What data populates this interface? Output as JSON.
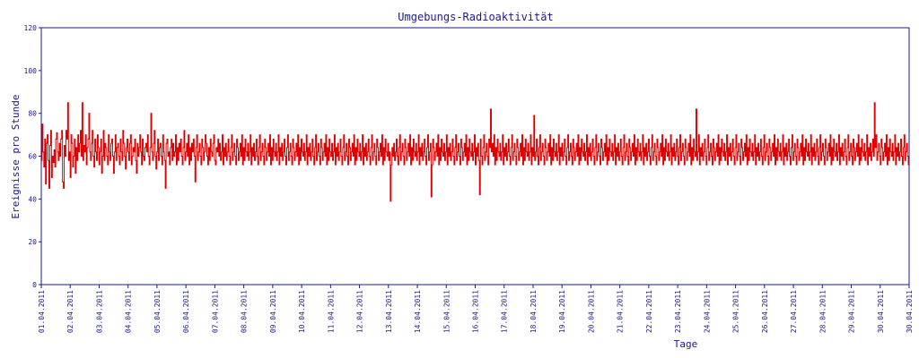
{
  "colors": {
    "axis": "#1a1a8c",
    "series": "#e00000",
    "background": "#ffffff"
  },
  "chart_data": {
    "type": "line",
    "title": "Umgebungs-Radioaktivität",
    "xlabel": "Tage",
    "ylabel": "Ereignisse pro Stunde",
    "ylim": [
      0,
      120
    ],
    "yticks": [
      0,
      20,
      40,
      60,
      80,
      100,
      120
    ],
    "xlim": [
      "2011-04-01 00:00",
      "2011-04-30 24:00"
    ],
    "x_tick_labels": [
      "01.04.2011",
      "02.04.2011",
      "03.04.2011",
      "04.04.2011",
      "05.04.2011",
      "06.04.2011",
      "07.04.2011",
      "08.04.2011",
      "09.04.2011",
      "10.04.2011",
      "11.04.2011",
      "12.04.2011",
      "13.04.2011",
      "14.04.2011",
      "15.04.2011",
      "16.04.2011",
      "17.04.2011",
      "18.04.2011",
      "19.04.2011",
      "20.04.2011",
      "21.04.2011",
      "22.04.2011",
      "23.04.2011",
      "24.04.2011",
      "25.04.2011",
      "26.04.2011",
      "27.04.2011",
      "28.04.2011",
      "29.04.2011",
      "30.04.2011",
      "30.04.2011"
    ],
    "grid": false,
    "series": [
      {
        "values": [
          58,
          75,
          62,
          55,
          68,
          47,
          66,
          70,
          58,
          45,
          65,
          72,
          50,
          60,
          57,
          63,
          55,
          68,
          71,
          62,
          58,
          66,
          60,
          68,
          72,
          48,
          45,
          65,
          60,
          72,
          68,
          85,
          58,
          62,
          50,
          70,
          66,
          55,
          60,
          68,
          52,
          64,
          58,
          70,
          62,
          66,
          72,
          60,
          85,
          58,
          65,
          62,
          70,
          56,
          64,
          68,
          80,
          62,
          58,
          66,
          72,
          60,
          55,
          68,
          62,
          58,
          70,
          64,
          56,
          62,
          68,
          52,
          60,
          72,
          58,
          66,
          64,
          60,
          56,
          70,
          62,
          58,
          66,
          68,
          60,
          52,
          62,
          70,
          58,
          64,
          66,
          60,
          56,
          68,
          62,
          58,
          72,
          66,
          60,
          54,
          64,
          68,
          62,
          58,
          66,
          70,
          56,
          60,
          64,
          62,
          68,
          58,
          52,
          66,
          60,
          64,
          70,
          62,
          56,
          68,
          60,
          58,
          64,
          66,
          62,
          70,
          60,
          56,
          64,
          80,
          62,
          58,
          66,
          72,
          60,
          54,
          62,
          68,
          58,
          64,
          66,
          60,
          56,
          70,
          62,
          58,
          45,
          66,
          68,
          60,
          62,
          56,
          64,
          68,
          58,
          66,
          60,
          62,
          70,
          56,
          64,
          58,
          66,
          62,
          68,
          60,
          56,
          64,
          72,
          58,
          62,
          66,
          60,
          70,
          56,
          64,
          58,
          66,
          62,
          68,
          60,
          48,
          64,
          70,
          58,
          62,
          66,
          60,
          56,
          68,
          64,
          58,
          62,
          70,
          66,
          60,
          56,
          64,
          58,
          68,
          62,
          60,
          66,
          70,
          58,
          56,
          64,
          62,
          68,
          60,
          66,
          58,
          62,
          70,
          56,
          64,
          60,
          66,
          58,
          62,
          68,
          60,
          56,
          64,
          70,
          58,
          62,
          66,
          60,
          56,
          68,
          64,
          58,
          62,
          66,
          60,
          70,
          56,
          64,
          58,
          68,
          62,
          60,
          66,
          58,
          62,
          70,
          56,
          64,
          60,
          66,
          58,
          62,
          68,
          60,
          56,
          64,
          70,
          58,
          62,
          66,
          60,
          56,
          68,
          64,
          58,
          62,
          66,
          60,
          70,
          56,
          64,
          58,
          68,
          62,
          60,
          66,
          58,
          62,
          70,
          56,
          64,
          60,
          66,
          58,
          62,
          68,
          60,
          56,
          64,
          70,
          58,
          62,
          66,
          60,
          56,
          68,
          64,
          58,
          62,
          66,
          60,
          70,
          56,
          64,
          58,
          68,
          62,
          60,
          66,
          58,
          62,
          70,
          56,
          64,
          60,
          66,
          58,
          62,
          68,
          60,
          56,
          64,
          70,
          58,
          62,
          66,
          60,
          56,
          68,
          64,
          58,
          62,
          66,
          60,
          70,
          56,
          64,
          58,
          68,
          62,
          60,
          66,
          58,
          62,
          70,
          56,
          64,
          60,
          66,
          58,
          62,
          68,
          60,
          56,
          64,
          70,
          58,
          62,
          66,
          60,
          56,
          68,
          64,
          58,
          62,
          66,
          60,
          70,
          56,
          64,
          58,
          68,
          62,
          60,
          66,
          58,
          62,
          70,
          56,
          64,
          60,
          66,
          58,
          62,
          68,
          60,
          56,
          64,
          70,
          58,
          62,
          66,
          60,
          56,
          68,
          64,
          58,
          62,
          66,
          60,
          70,
          56,
          64,
          58,
          68,
          62,
          60,
          66,
          58,
          62,
          39,
          56,
          64,
          60,
          66,
          58,
          62,
          68,
          60,
          56,
          64,
          70,
          58,
          62,
          66,
          60,
          56,
          68,
          64,
          58,
          62,
          66,
          60,
          70,
          56,
          64,
          58,
          68,
          62,
          60,
          66,
          58,
          62,
          70,
          56,
          64,
          60,
          66,
          58,
          62,
          68,
          60,
          56,
          64,
          70,
          58,
          62,
          66,
          41,
          56,
          68,
          64,
          58,
          62,
          66,
          60,
          70,
          56,
          64,
          58,
          68,
          62,
          60,
          66,
          58,
          62,
          70,
          56,
          64,
          60,
          66,
          58,
          62,
          68,
          60,
          56,
          64,
          70,
          58,
          62,
          66,
          60,
          56,
          68,
          64,
          58,
          62,
          66,
          60,
          70,
          56,
          64,
          58,
          68,
          62,
          60,
          66,
          58,
          62,
          70,
          56,
          64,
          60,
          66,
          58,
          42,
          68,
          60,
          56,
          64,
          70,
          58,
          62,
          66,
          60,
          56,
          68,
          64,
          82,
          62,
          66,
          60,
          70,
          56,
          64,
          58,
          68,
          62,
          60,
          66,
          58,
          62,
          70,
          56,
          64,
          60,
          66,
          58,
          62,
          68,
          60,
          56,
          64,
          70,
          58,
          62,
          66,
          60,
          56,
          68,
          64,
          58,
          62,
          66,
          60,
          70,
          56,
          64,
          58,
          68,
          62,
          60,
          66,
          58,
          62,
          70,
          56,
          64,
          60,
          79,
          58,
          62,
          68,
          60,
          56,
          64,
          70,
          58,
          62,
          66,
          60,
          56,
          68,
          64,
          58,
          62,
          66,
          60,
          70,
          56,
          64,
          58,
          68,
          62,
          60,
          66,
          58,
          62,
          70,
          56,
          64,
          60,
          66,
          58,
          62,
          68,
          60,
          56,
          64,
          70,
          58,
          62,
          66,
          60,
          56,
          68,
          64,
          58,
          62,
          66,
          60,
          70,
          56,
          64,
          58,
          68,
          62,
          60,
          66,
          58,
          62,
          70,
          56,
          64,
          60,
          66,
          58,
          62,
          68,
          60,
          56,
          64,
          70,
          58,
          62,
          66,
          60,
          56,
          68,
          64,
          58,
          62,
          66,
          60,
          70,
          56,
          64,
          58,
          68,
          62,
          60,
          66,
          58,
          62,
          70,
          56,
          64,
          60,
          66,
          58,
          62,
          68,
          60,
          56,
          64,
          70,
          58,
          62,
          66,
          60,
          56,
          68,
          64,
          58,
          62,
          66,
          60,
          70,
          56,
          64,
          58,
          68,
          62,
          60,
          66,
          58,
          62,
          70,
          56,
          64,
          60,
          66,
          58,
          62,
          68,
          60,
          56,
          64,
          70,
          58,
          62,
          66,
          60,
          56,
          68,
          64,
          58,
          62,
          66,
          60,
          70,
          56,
          64,
          58,
          68,
          62,
          60,
          66,
          58,
          62,
          70,
          56,
          64,
          60,
          66,
          58,
          62,
          68,
          60,
          56,
          64,
          70,
          58,
          62,
          66,
          60,
          56,
          68,
          64,
          58,
          62,
          66,
          60,
          70,
          56,
          64,
          58,
          68,
          62,
          60,
          82,
          58,
          62,
          70,
          56,
          64,
          60,
          66,
          58,
          62,
          68,
          60,
          56,
          64,
          70,
          58,
          62,
          66,
          60,
          56,
          68,
          64,
          58,
          62,
          66,
          60,
          70,
          56,
          64,
          58,
          68,
          62,
          60,
          66,
          58,
          62,
          70,
          56,
          64,
          60,
          66,
          58,
          62,
          68,
          60,
          56,
          64,
          70,
          58,
          62,
          66,
          60,
          56,
          68,
          64,
          58,
          62,
          66,
          60,
          70,
          56,
          64,
          58,
          68,
          62,
          60,
          66,
          58,
          62,
          70,
          56,
          64,
          60,
          66,
          58,
          62,
          68,
          60,
          56,
          64,
          70,
          58,
          62,
          66,
          60,
          56,
          68,
          64,
          58,
          62,
          66,
          60,
          70,
          56,
          64,
          58,
          68,
          62,
          60,
          66,
          58,
          62,
          70,
          56,
          64,
          60,
          66,
          58,
          62,
          68,
          60,
          56,
          64,
          70,
          58,
          62,
          66,
          60,
          56,
          68,
          64,
          58,
          62,
          66,
          60,
          70,
          56,
          64,
          58,
          68,
          62,
          60,
          66,
          58,
          62,
          70,
          56,
          64,
          60,
          66,
          58,
          62,
          68,
          60,
          56,
          64,
          70,
          58,
          62,
          66,
          60,
          56,
          68,
          64,
          58,
          62,
          66,
          60,
          70,
          56,
          64,
          58,
          68,
          62,
          60,
          66,
          58,
          62,
          70,
          56,
          64,
          60,
          66,
          58,
          62,
          68,
          60,
          56,
          64,
          70,
          58,
          62,
          66,
          60,
          56,
          68,
          64,
          58,
          62,
          66,
          60,
          70,
          56,
          64,
          58,
          68,
          62,
          60,
          66,
          58,
          62,
          70,
          56,
          64,
          60,
          66,
          58,
          62,
          68,
          60,
          85,
          64,
          70,
          58,
          62,
          66,
          60,
          56,
          68,
          64,
          58,
          62,
          66,
          60,
          70,
          56,
          64,
          58,
          68,
          62,
          60,
          66,
          58,
          62,
          70,
          56,
          64,
          60,
          66,
          58,
          62,
          68,
          60,
          56,
          64,
          70,
          58,
          62,
          66,
          60,
          56
        ]
      }
    ]
  }
}
